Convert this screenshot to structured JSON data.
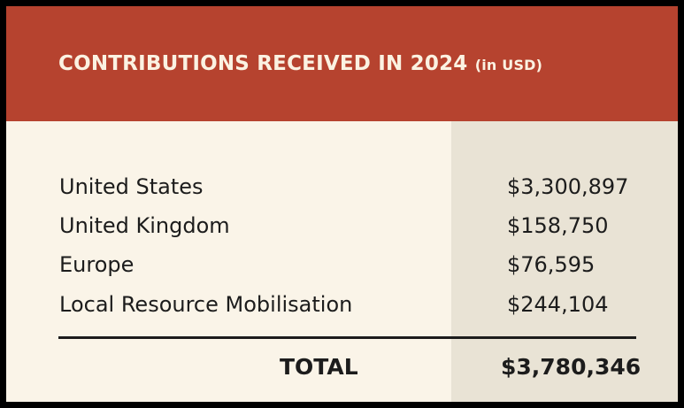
{
  "header": {
    "title": "CONTRIBUTIONS RECEIVED IN 2024",
    "unit": "(in USD)"
  },
  "rows": [
    {
      "label": "United States",
      "value": "$3,300,897"
    },
    {
      "label": "United Kingdom",
      "value": "$158,750"
    },
    {
      "label": "Europe",
      "value": "$76,595"
    },
    {
      "label": "Local Resource Mobilisation",
      "value": "$244,104"
    }
  ],
  "total": {
    "label": "TOTAL",
    "value": "$3,780,346"
  },
  "colors": {
    "header": "#b6432f",
    "background": "#faf4e8",
    "shade": "#e9e3d5"
  }
}
